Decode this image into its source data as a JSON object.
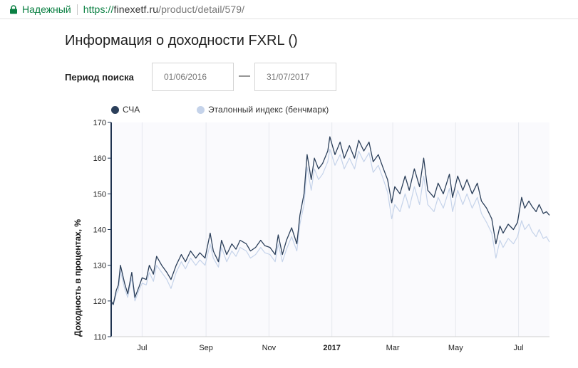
{
  "browser": {
    "secure_label": "Надежный",
    "url_scheme": "https://",
    "url_host": "finexetf.ru",
    "url_path": "/product/detail/579/"
  },
  "page": {
    "title": "Информация о доходности FXRL ()",
    "period_label": "Период поиска",
    "date_from": "01/06/2016",
    "date_to": "31/07/2017",
    "dash": "—"
  },
  "colors": {
    "nav": "#2b3f5a",
    "benchmark": "#c5d3ea",
    "secure": "#0b8043"
  },
  "chart_data": {
    "type": "line",
    "ylabel": "Доходность в процентах, %",
    "ylim": [
      110,
      170
    ],
    "yticks": [
      110,
      120,
      130,
      140,
      150,
      160,
      170
    ],
    "x_range": [
      "2016-06-01",
      "2017-07-31"
    ],
    "xticks": [
      {
        "label": "Jul",
        "date": "2016-07-01",
        "bold": false
      },
      {
        "label": "Sep",
        "date": "2016-09-01",
        "bold": false
      },
      {
        "label": "Nov",
        "date": "2016-11-01",
        "bold": false
      },
      {
        "label": "2017",
        "date": "2017-01-01",
        "bold": true
      },
      {
        "label": "Mar",
        "date": "2017-03-01",
        "bold": false
      },
      {
        "label": "May",
        "date": "2017-05-01",
        "bold": false
      },
      {
        "label": "Jul",
        "date": "2017-07-01",
        "bold": false
      }
    ],
    "grid": "vertical",
    "legend_position": "top-left",
    "series": [
      {
        "name": "СЧА",
        "color": "#2b3f5a",
        "points": [
          [
            "2016-06-01",
            120.0
          ],
          [
            "2016-06-03",
            119.0
          ],
          [
            "2016-06-06",
            123.0
          ],
          [
            "2016-06-08",
            124.5
          ],
          [
            "2016-06-10",
            130.0
          ],
          [
            "2016-06-14",
            125.0
          ],
          [
            "2016-06-17",
            122.0
          ],
          [
            "2016-06-21",
            128.0
          ],
          [
            "2016-06-24",
            121.0
          ],
          [
            "2016-06-28",
            124.0
          ],
          [
            "2016-07-01",
            126.5
          ],
          [
            "2016-07-05",
            126.0
          ],
          [
            "2016-07-08",
            130.0
          ],
          [
            "2016-07-12",
            127.5
          ],
          [
            "2016-07-15",
            132.5
          ],
          [
            "2016-07-20",
            130.0
          ],
          [
            "2016-07-25",
            128.0
          ],
          [
            "2016-07-29",
            126.0
          ],
          [
            "2016-08-03",
            130.0
          ],
          [
            "2016-08-08",
            133.0
          ],
          [
            "2016-08-12",
            131.0
          ],
          [
            "2016-08-17",
            134.0
          ],
          [
            "2016-08-22",
            132.0
          ],
          [
            "2016-08-26",
            133.5
          ],
          [
            "2016-08-31",
            132.0
          ],
          [
            "2016-09-05",
            139.0
          ],
          [
            "2016-09-08",
            134.0
          ],
          [
            "2016-09-13",
            131.0
          ],
          [
            "2016-09-16",
            137.0
          ],
          [
            "2016-09-21",
            133.0
          ],
          [
            "2016-09-26",
            136.0
          ],
          [
            "2016-09-30",
            134.5
          ],
          [
            "2016-10-04",
            137.0
          ],
          [
            "2016-10-10",
            136.0
          ],
          [
            "2016-10-14",
            134.0
          ],
          [
            "2016-10-19",
            135.0
          ],
          [
            "2016-10-24",
            137.0
          ],
          [
            "2016-10-28",
            135.5
          ],
          [
            "2016-11-02",
            135.0
          ],
          [
            "2016-11-07",
            133.0
          ],
          [
            "2016-11-10",
            138.5
          ],
          [
            "2016-11-14",
            133.0
          ],
          [
            "2016-11-18",
            137.0
          ],
          [
            "2016-11-23",
            140.5
          ],
          [
            "2016-11-28",
            136.0
          ],
          [
            "2016-12-01",
            144.0
          ],
          [
            "2016-12-05",
            150.0
          ],
          [
            "2016-12-08",
            161.0
          ],
          [
            "2016-12-12",
            154.0
          ],
          [
            "2016-12-15",
            160.0
          ],
          [
            "2016-12-19",
            157.0
          ],
          [
            "2016-12-23",
            158.5
          ],
          [
            "2016-12-28",
            162.0
          ],
          [
            "2016-12-30",
            166.0
          ],
          [
            "2017-01-04",
            161.0
          ],
          [
            "2017-01-09",
            164.5
          ],
          [
            "2017-01-13",
            160.0
          ],
          [
            "2017-01-18",
            163.5
          ],
          [
            "2017-01-23",
            160.0
          ],
          [
            "2017-01-27",
            165.0
          ],
          [
            "2017-02-01",
            162.0
          ],
          [
            "2017-02-06",
            164.5
          ],
          [
            "2017-02-10",
            159.0
          ],
          [
            "2017-02-15",
            161.0
          ],
          [
            "2017-02-20",
            157.0
          ],
          [
            "2017-02-24",
            154.0
          ],
          [
            "2017-02-28",
            147.5
          ],
          [
            "2017-03-03",
            152.0
          ],
          [
            "2017-03-08",
            150.0
          ],
          [
            "2017-03-13",
            155.0
          ],
          [
            "2017-03-17",
            151.0
          ],
          [
            "2017-03-22",
            157.0
          ],
          [
            "2017-03-27",
            152.0
          ],
          [
            "2017-03-31",
            160.0
          ],
          [
            "2017-04-04",
            151.0
          ],
          [
            "2017-04-10",
            149.0
          ],
          [
            "2017-04-14",
            153.0
          ],
          [
            "2017-04-19",
            150.0
          ],
          [
            "2017-04-25",
            155.5
          ],
          [
            "2017-04-28",
            149.0
          ],
          [
            "2017-05-03",
            155.0
          ],
          [
            "2017-05-08",
            151.0
          ],
          [
            "2017-05-12",
            154.0
          ],
          [
            "2017-05-17",
            150.0
          ],
          [
            "2017-05-22",
            153.0
          ],
          [
            "2017-05-26",
            148.0
          ],
          [
            "2017-05-31",
            146.0
          ],
          [
            "2017-06-05",
            143.0
          ],
          [
            "2017-06-09",
            136.0
          ],
          [
            "2017-06-13",
            141.0
          ],
          [
            "2017-06-16",
            139.0
          ],
          [
            "2017-06-21",
            141.5
          ],
          [
            "2017-06-26",
            140.0
          ],
          [
            "2017-06-30",
            142.0
          ],
          [
            "2017-07-04",
            149.0
          ],
          [
            "2017-07-07",
            146.0
          ],
          [
            "2017-07-11",
            148.0
          ],
          [
            "2017-07-14",
            146.5
          ],
          [
            "2017-07-18",
            145.0
          ],
          [
            "2017-07-21",
            147.0
          ],
          [
            "2017-07-25",
            144.5
          ],
          [
            "2017-07-28",
            145.0
          ],
          [
            "2017-07-31",
            144.0
          ]
        ]
      },
      {
        "name": "Эталонный индекс (бенчмарк)",
        "color": "#c5d3ea",
        "points": [
          [
            "2016-06-01",
            119.5
          ],
          [
            "2016-06-03",
            119.0
          ],
          [
            "2016-06-06",
            122.0
          ],
          [
            "2016-06-08",
            123.0
          ],
          [
            "2016-06-10",
            128.5
          ],
          [
            "2016-06-14",
            123.5
          ],
          [
            "2016-06-17",
            121.0
          ],
          [
            "2016-06-21",
            126.5
          ],
          [
            "2016-06-24",
            120.0
          ],
          [
            "2016-06-28",
            123.0
          ],
          [
            "2016-07-01",
            125.0
          ],
          [
            "2016-07-05",
            124.5
          ],
          [
            "2016-07-08",
            128.0
          ],
          [
            "2016-07-12",
            125.5
          ],
          [
            "2016-07-15",
            130.0
          ],
          [
            "2016-07-20",
            128.0
          ],
          [
            "2016-07-25",
            126.0
          ],
          [
            "2016-07-29",
            123.5
          ],
          [
            "2016-08-03",
            128.0
          ],
          [
            "2016-08-08",
            131.0
          ],
          [
            "2016-08-12",
            129.0
          ],
          [
            "2016-08-17",
            132.0
          ],
          [
            "2016-08-22",
            130.0
          ],
          [
            "2016-08-26",
            131.5
          ],
          [
            "2016-08-31",
            130.0
          ],
          [
            "2016-09-05",
            136.0
          ],
          [
            "2016-09-08",
            132.0
          ],
          [
            "2016-09-13",
            129.5
          ],
          [
            "2016-09-16",
            135.0
          ],
          [
            "2016-09-21",
            131.0
          ],
          [
            "2016-09-26",
            134.0
          ],
          [
            "2016-09-30",
            132.5
          ],
          [
            "2016-10-04",
            135.0
          ],
          [
            "2016-10-10",
            134.0
          ],
          [
            "2016-10-14",
            132.0
          ],
          [
            "2016-10-19",
            133.0
          ],
          [
            "2016-10-24",
            135.0
          ],
          [
            "2016-10-28",
            133.5
          ],
          [
            "2016-11-02",
            133.0
          ],
          [
            "2016-11-07",
            131.0
          ],
          [
            "2016-11-10",
            136.0
          ],
          [
            "2016-11-14",
            131.0
          ],
          [
            "2016-11-18",
            134.5
          ],
          [
            "2016-11-23",
            138.0
          ],
          [
            "2016-11-28",
            134.0
          ],
          [
            "2016-12-01",
            141.5
          ],
          [
            "2016-12-05",
            147.0
          ],
          [
            "2016-12-08",
            157.5
          ],
          [
            "2016-12-12",
            151.0
          ],
          [
            "2016-12-15",
            157.0
          ],
          [
            "2016-12-19",
            154.0
          ],
          [
            "2016-12-23",
            155.5
          ],
          [
            "2016-12-28",
            159.0
          ],
          [
            "2016-12-30",
            162.5
          ],
          [
            "2017-01-04",
            158.0
          ],
          [
            "2017-01-09",
            161.0
          ],
          [
            "2017-01-13",
            157.0
          ],
          [
            "2017-01-18",
            160.0
          ],
          [
            "2017-01-23",
            157.0
          ],
          [
            "2017-01-27",
            162.0
          ],
          [
            "2017-02-01",
            159.0
          ],
          [
            "2017-02-06",
            161.5
          ],
          [
            "2017-02-10",
            156.0
          ],
          [
            "2017-02-15",
            158.0
          ],
          [
            "2017-02-20",
            154.0
          ],
          [
            "2017-02-24",
            150.5
          ],
          [
            "2017-02-28",
            143.0
          ],
          [
            "2017-03-03",
            147.0
          ],
          [
            "2017-03-08",
            145.0
          ],
          [
            "2017-03-13",
            150.0
          ],
          [
            "2017-03-17",
            146.0
          ],
          [
            "2017-03-22",
            152.0
          ],
          [
            "2017-03-27",
            147.0
          ],
          [
            "2017-03-31",
            155.0
          ],
          [
            "2017-04-04",
            147.0
          ],
          [
            "2017-04-10",
            145.0
          ],
          [
            "2017-04-14",
            149.0
          ],
          [
            "2017-04-19",
            146.0
          ],
          [
            "2017-04-25",
            151.5
          ],
          [
            "2017-04-28",
            145.0
          ],
          [
            "2017-05-03",
            151.0
          ],
          [
            "2017-05-08",
            147.0
          ],
          [
            "2017-05-12",
            150.0
          ],
          [
            "2017-05-17",
            146.0
          ],
          [
            "2017-05-22",
            149.0
          ],
          [
            "2017-05-26",
            144.5
          ],
          [
            "2017-05-31",
            142.0
          ],
          [
            "2017-06-05",
            139.0
          ],
          [
            "2017-06-09",
            132.0
          ],
          [
            "2017-06-13",
            137.0
          ],
          [
            "2017-06-16",
            135.0
          ],
          [
            "2017-06-21",
            137.5
          ],
          [
            "2017-06-26",
            136.0
          ],
          [
            "2017-06-30",
            138.0
          ],
          [
            "2017-07-04",
            142.5
          ],
          [
            "2017-07-07",
            140.0
          ],
          [
            "2017-07-11",
            141.5
          ],
          [
            "2017-07-14",
            139.5
          ],
          [
            "2017-07-18",
            138.0
          ],
          [
            "2017-07-21",
            140.0
          ],
          [
            "2017-07-25",
            137.5
          ],
          [
            "2017-07-28",
            138.0
          ],
          [
            "2017-07-31",
            136.5
          ]
        ]
      }
    ]
  }
}
